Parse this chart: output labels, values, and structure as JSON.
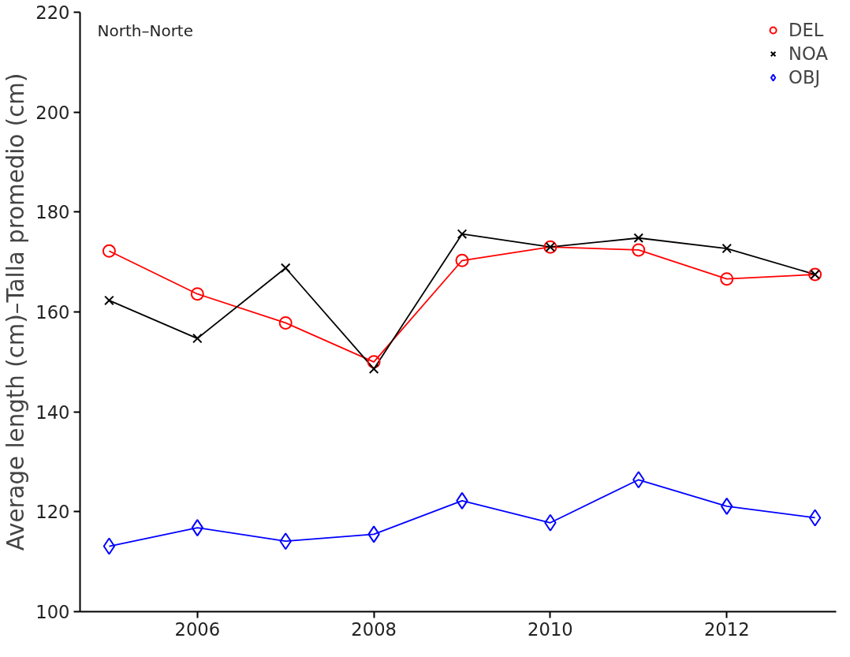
{
  "chart_data": {
    "type": "line",
    "ylabel": "Average length (cm)–Talla promedio (cm)",
    "annotations": [
      "North–Norte"
    ],
    "x": [
      2005,
      2006,
      2007,
      2008,
      2009,
      2010,
      2011,
      2012,
      2013
    ],
    "xlim": [
      2004.67,
      2013.24
    ],
    "xticks": [
      2006,
      2008,
      2010,
      2012
    ],
    "ylim": [
      100,
      220
    ],
    "yticks": [
      100,
      120,
      140,
      160,
      180,
      200,
      220
    ],
    "grid": false,
    "legend": "top right",
    "line_style": "solid",
    "series": [
      {
        "name": "DEL",
        "color": "#ff0000",
        "marker": "circle",
        "values": [
          172.2,
          163.6,
          157.8,
          150.0,
          170.3,
          173.0,
          172.4,
          166.6,
          167.5
        ]
      },
      {
        "name": "NOA",
        "color": "#000000",
        "marker": "cross",
        "values": [
          162.3,
          154.7,
          168.8,
          148.6,
          175.6,
          173.0,
          174.8,
          172.7,
          167.5
        ]
      },
      {
        "name": "OBJ",
        "color": "#0000ff",
        "marker": "diamond",
        "values": [
          113.1,
          116.8,
          114.1,
          115.5,
          122.2,
          117.8,
          126.4,
          121.1,
          118.8
        ]
      }
    ]
  }
}
